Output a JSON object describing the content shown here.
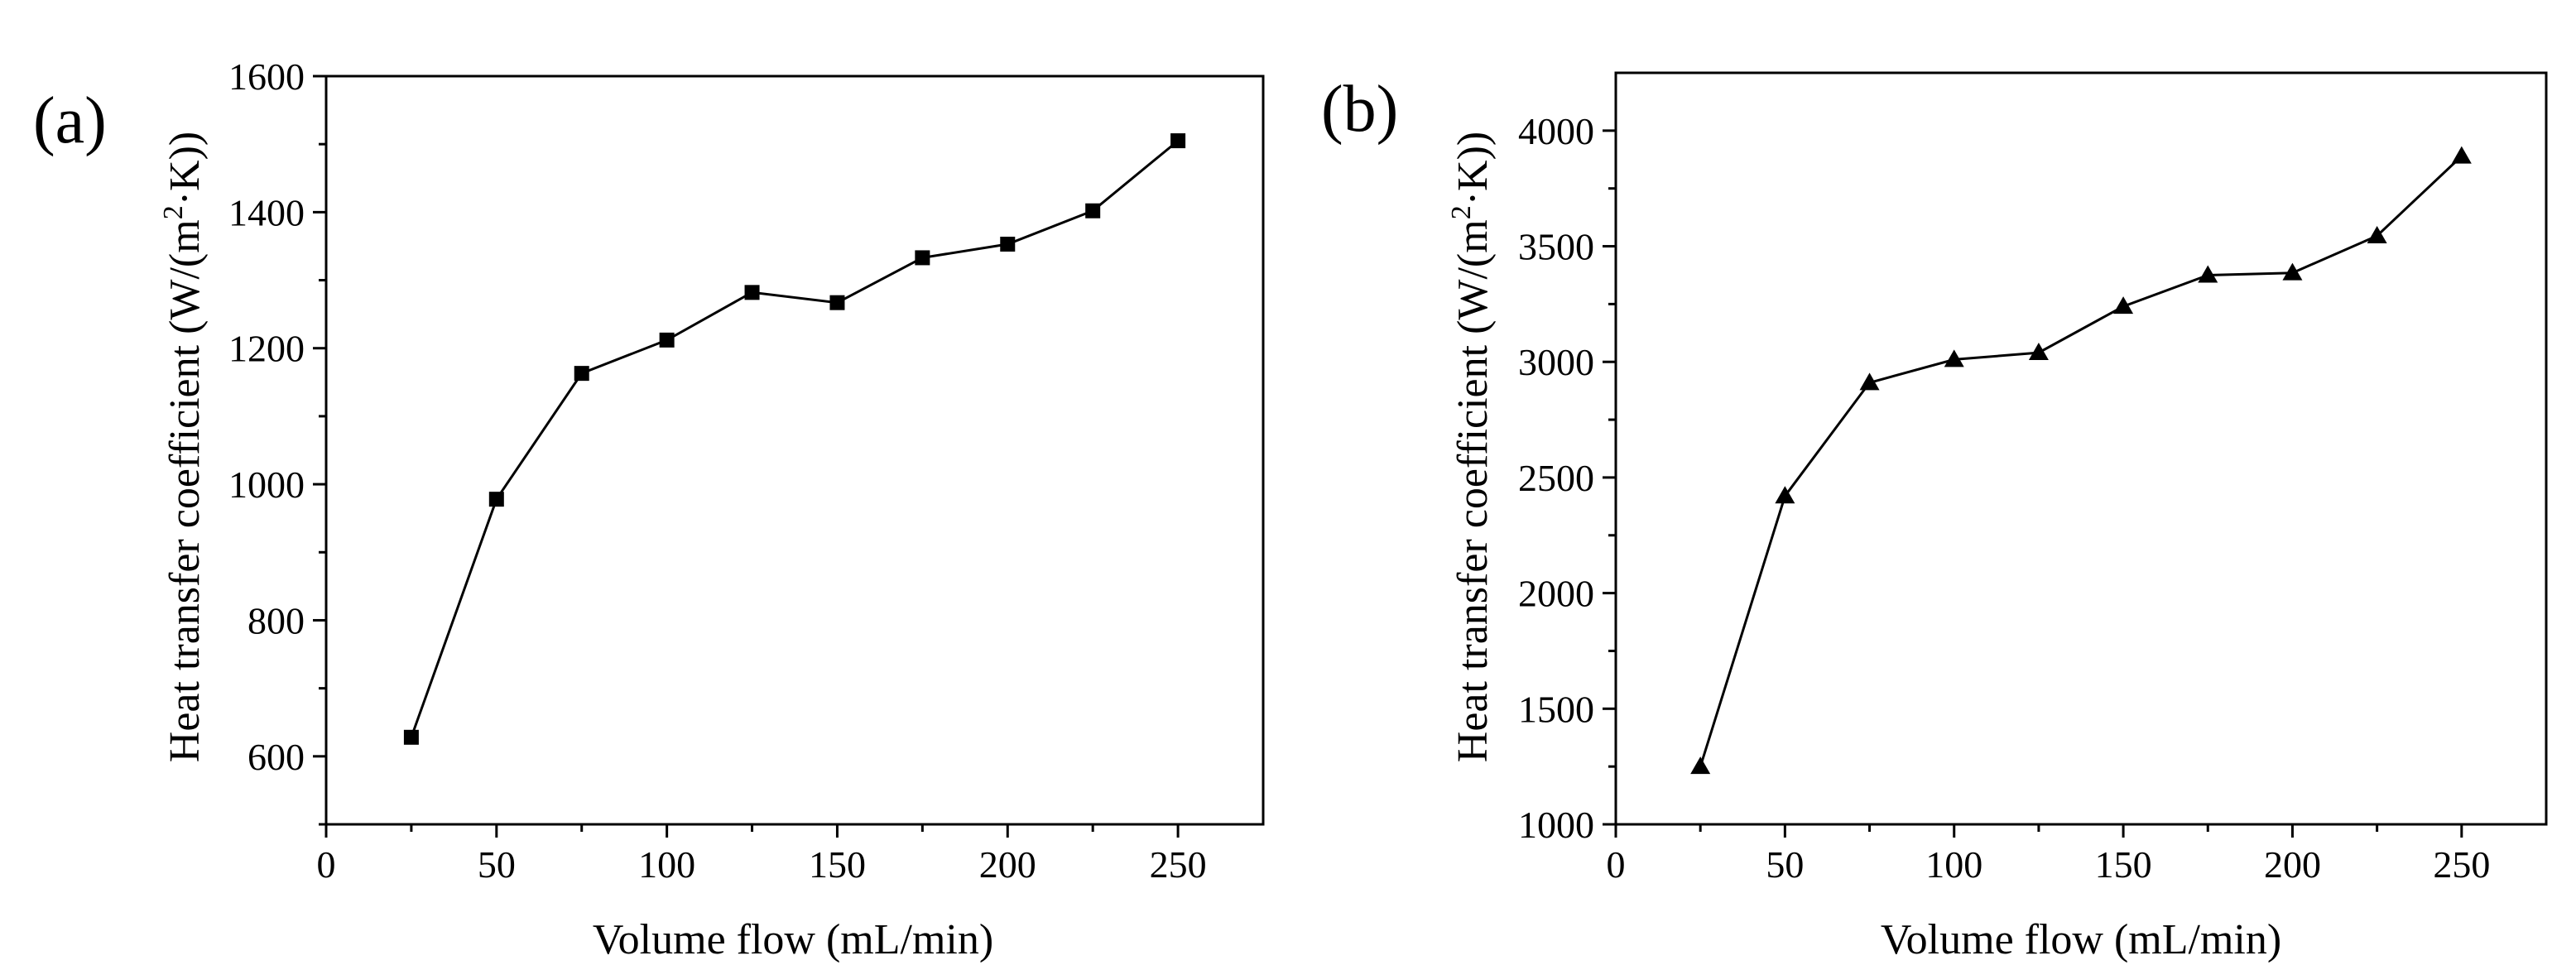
{
  "figure": {
    "panels": [
      {
        "panel_label": "(a)",
        "ylabel_parts": [
          "Heat transfer coefficient (W/(m",
          "2",
          "·K))"
        ],
        "xlabel": "Volume flow (mL/min)"
      },
      {
        "panel_label": "(b)",
        "ylabel_parts": [
          "Heat transfer coefficient (W/(m",
          "2",
          "·K))"
        ],
        "xlabel": "Volume flow (mL/min)"
      }
    ]
  },
  "chart_data": [
    {
      "type": "line",
      "panel": "(a)",
      "title": "",
      "xlabel": "Volume flow (mL/min)",
      "ylabel": "Heat transfer coefficient (W/(m2·K))",
      "xlim": [
        0,
        275
      ],
      "ylim": [
        500,
        1600
      ],
      "xticks": [
        0,
        50,
        100,
        150,
        200,
        250
      ],
      "yticks": [
        600,
        800,
        1000,
        1200,
        1400,
        1600
      ],
      "yminor": [
        500,
        700,
        900,
        1100,
        1300,
        1500
      ],
      "xminor": [
        25,
        75,
        125,
        175,
        225
      ],
      "marker": "square",
      "color": "#000000",
      "series": [
        {
          "name": "Heat transfer coefficient",
          "x": [
            25,
            50,
            75,
            100,
            125,
            150,
            175,
            200,
            225,
            250
          ],
          "y": [
            628,
            978,
            1163,
            1212,
            1282,
            1267,
            1333,
            1353,
            1402,
            1505
          ]
        }
      ]
    },
    {
      "type": "line",
      "panel": "(b)",
      "title": "",
      "xlabel": "Volume flow (mL/min)",
      "ylabel": "Heat transfer coefficient (W/(m2·K))",
      "xlim": [
        0,
        275
      ],
      "ylim": [
        1000,
        4250
      ],
      "xticks": [
        0,
        50,
        100,
        150,
        200,
        250
      ],
      "yticks": [
        1000,
        1500,
        2000,
        2500,
        3000,
        3500,
        4000
      ],
      "yminor": [
        1250,
        1750,
        2250,
        2750,
        3250,
        3750
      ],
      "xminor": [
        25,
        75,
        125,
        175,
        225
      ],
      "marker": "triangle",
      "color": "#000000",
      "series": [
        {
          "name": "Heat transfer coefficient",
          "x": [
            25,
            50,
            75,
            100,
            125,
            150,
            175,
            200,
            225,
            250
          ],
          "y": [
            1250,
            2420,
            2910,
            3010,
            3040,
            3240,
            3375,
            3385,
            3545,
            3890
          ]
        }
      ]
    }
  ]
}
